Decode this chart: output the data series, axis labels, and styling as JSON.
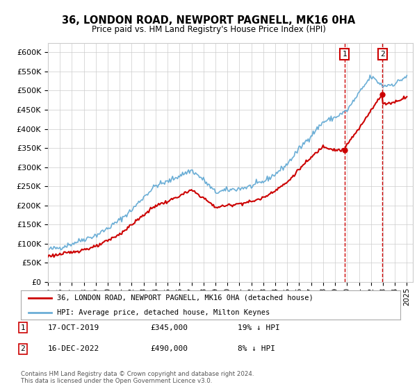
{
  "title": "36, LONDON ROAD, NEWPORT PAGNELL, MK16 0HA",
  "subtitle": "Price paid vs. HM Land Registry's House Price Index (HPI)",
  "ylabel_values": [
    0,
    50000,
    100000,
    150000,
    200000,
    250000,
    300000,
    350000,
    400000,
    450000,
    500000,
    550000,
    600000
  ],
  "ylim": [
    0,
    625000
  ],
  "xlim_start": 1995.0,
  "xlim_end": 2025.5,
  "hpi_color": "#6baed6",
  "price_color": "#cc0000",
  "dashed_color": "#cc0000",
  "transaction1_x": 2019.79,
  "transaction1_y": 345000,
  "transaction1_label": "17-OCT-2019",
  "transaction1_price": "£345,000",
  "transaction1_hpi": "19% ↓ HPI",
  "transaction2_x": 2022.96,
  "transaction2_y": 490000,
  "transaction2_label": "16-DEC-2022",
  "transaction2_price": "£490,000",
  "transaction2_hpi": "8% ↓ HPI",
  "legend_label1": "36, LONDON ROAD, NEWPORT PAGNELL, MK16 0HA (detached house)",
  "legend_label2": "HPI: Average price, detached house, Milton Keynes",
  "footer": "Contains HM Land Registry data © Crown copyright and database right 2024.\nThis data is licensed under the Open Government Licence v3.0.",
  "xticks": [
    1995,
    1996,
    1997,
    1998,
    1999,
    2000,
    2001,
    2002,
    2003,
    2004,
    2005,
    2006,
    2007,
    2008,
    2009,
    2010,
    2011,
    2012,
    2013,
    2014,
    2015,
    2016,
    2017,
    2018,
    2019,
    2020,
    2021,
    2022,
    2023,
    2024,
    2025
  ],
  "background_color": "#ffffff",
  "grid_color": "#cccccc"
}
